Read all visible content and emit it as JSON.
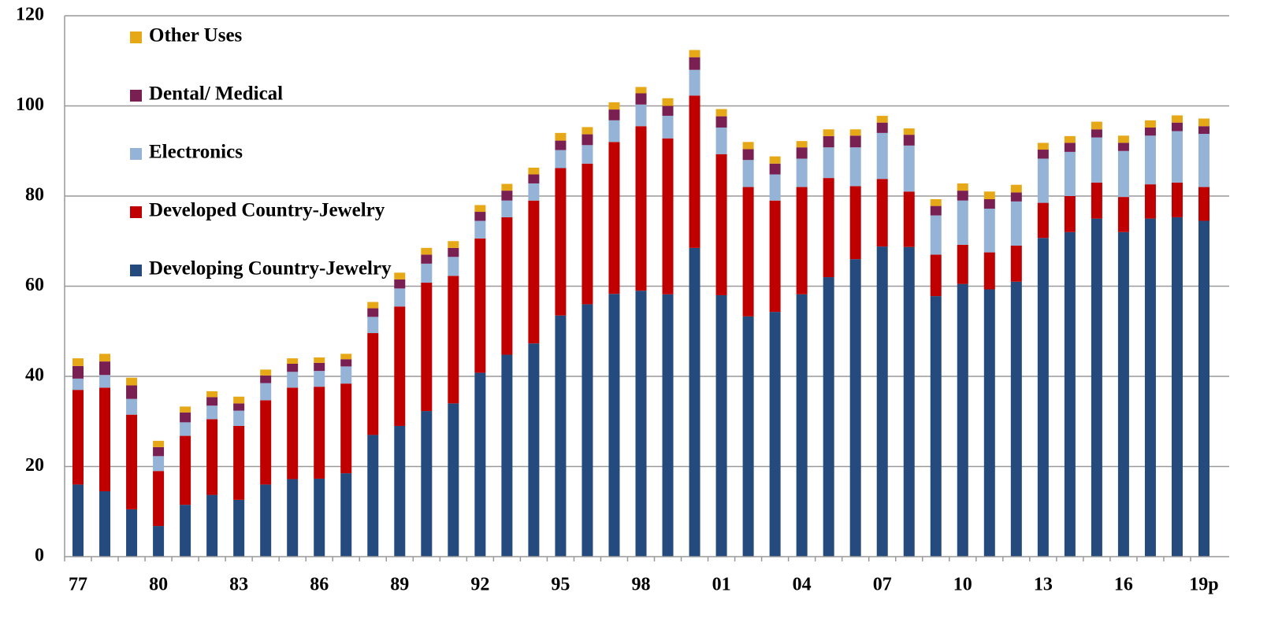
{
  "chart_data": {
    "type": "stacked_bar",
    "categories": [
      "77",
      null,
      null,
      "80",
      null,
      null,
      "83",
      null,
      null,
      "86",
      null,
      null,
      "89",
      null,
      null,
      "92",
      null,
      null,
      "95",
      null,
      null,
      "98",
      null,
      null,
      "01",
      null,
      null,
      "04",
      null,
      null,
      "07",
      null,
      null,
      "10",
      null,
      null,
      "13",
      null,
      null,
      "16",
      null,
      null,
      "19p"
    ],
    "series": [
      {
        "name": "Developing Country-Jewelry",
        "color": "#254b7e",
        "values": [
          16,
          14.5,
          10.5,
          6.8,
          11.5,
          13.7,
          12.6,
          16,
          17.2,
          17.3,
          18.5,
          27,
          29,
          32.3,
          34,
          40.8,
          44.8,
          47.3,
          53.5,
          56,
          58.3,
          59,
          58.2,
          68.5,
          58,
          53.3,
          54.3,
          58.2,
          62,
          66,
          68.8,
          68.7,
          57.8,
          60.5,
          59.3,
          61,
          70.7,
          72,
          75,
          72,
          75,
          75.3,
          74.5
        ]
      },
      {
        "name": "Developed Country-Jewelry",
        "color": "#c00000",
        "values": [
          21,
          23,
          21,
          12.2,
          15.3,
          16.8,
          16.4,
          18.7,
          20.3,
          20.4,
          19.9,
          22.6,
          26.5,
          28.5,
          28.3,
          29.8,
          30.5,
          31.7,
          32.7,
          31.2,
          33.7,
          36.5,
          34.6,
          33.8,
          31.3,
          28.7,
          24.7,
          23.8,
          22,
          16.2,
          15,
          12.3,
          9.2,
          8.7,
          8.2,
          8,
          7.8,
          8,
          8,
          7.8,
          7.6,
          7.7,
          7.5
        ]
      },
      {
        "name": "Electronics",
        "color": "#95b3d7",
        "values": [
          2.5,
          2.8,
          3.5,
          3.3,
          3,
          3,
          3.4,
          3.8,
          3.5,
          3.5,
          3.8,
          3.6,
          4,
          4.2,
          4.2,
          3.9,
          3.7,
          3.8,
          4,
          4.1,
          4.8,
          4.8,
          5,
          5.7,
          5.9,
          6,
          5.8,
          6.3,
          6.8,
          8.6,
          10.2,
          10.2,
          8.7,
          9.8,
          9.7,
          9.8,
          9.8,
          9.8,
          10,
          10.2,
          10.8,
          11.4,
          11.8
        ]
      },
      {
        "name": "Dental/ Medical",
        "color": "#7a1f52",
        "values": [
          2.8,
          3,
          3,
          2,
          2.2,
          1.9,
          1.6,
          1.7,
          1.8,
          1.8,
          1.6,
          1.9,
          2,
          2,
          2,
          2,
          2.2,
          2,
          2.1,
          2.4,
          2.4,
          2.5,
          2.2,
          2.8,
          2.5,
          2.4,
          2.4,
          2.5,
          2.5,
          2.6,
          2.3,
          2.4,
          2.1,
          2.2,
          2.1,
          2,
          2,
          2,
          1.8,
          1.8,
          1.8,
          1.9,
          1.7
        ]
      },
      {
        "name": "Other Uses",
        "color": "#e6a817",
        "values": [
          1.7,
          1.7,
          1.7,
          1.4,
          1.3,
          1.3,
          1.5,
          1.3,
          1.2,
          1.2,
          1.2,
          1.4,
          1.5,
          1.5,
          1.5,
          1.5,
          1.5,
          1.5,
          1.7,
          1.6,
          1.6,
          1.4,
          1.7,
          1.6,
          1.6,
          1.6,
          1.6,
          1.4,
          1.5,
          1.4,
          1.5,
          1.4,
          1.5,
          1.6,
          1.7,
          1.7,
          1.5,
          1.5,
          1.7,
          1.6,
          1.6,
          1.6,
          1.7
        ]
      }
    ],
    "ylim": [
      0,
      120
    ],
    "yticks": [
      0,
      20,
      40,
      60,
      80,
      100,
      120
    ],
    "grid": true,
    "legend": "upper-left"
  }
}
